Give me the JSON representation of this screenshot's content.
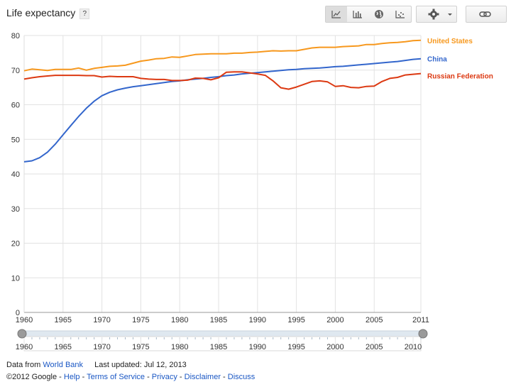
{
  "header": {
    "title": "Life expectancy",
    "help_label": "?"
  },
  "toolbar": {
    "buttons": [
      {
        "name": "line-chart-button",
        "icon": "line-chart-icon",
        "active": true
      },
      {
        "name": "bar-chart-button",
        "icon": "bar-chart-icon",
        "active": false
      },
      {
        "name": "map-button",
        "icon": "globe-icon",
        "active": false
      },
      {
        "name": "scatter-button",
        "icon": "scatter-icon",
        "active": false
      }
    ],
    "settings_icon": "gear-icon",
    "link_icon": "link-icon"
  },
  "chart_data": {
    "type": "line",
    "title": "Life expectancy",
    "xlim": [
      1960,
      2011
    ],
    "ylim": [
      0,
      80
    ],
    "x_ticks": [
      1960,
      1965,
      1970,
      1975,
      1980,
      1985,
      1990,
      1995,
      2000,
      2005,
      2011
    ],
    "y_ticks": [
      0,
      10,
      20,
      30,
      40,
      50,
      60,
      70,
      80
    ],
    "grid": true,
    "legend": "right",
    "x": [
      1960,
      1961,
      1962,
      1963,
      1964,
      1965,
      1966,
      1967,
      1968,
      1969,
      1970,
      1971,
      1972,
      1973,
      1974,
      1975,
      1976,
      1977,
      1978,
      1979,
      1980,
      1981,
      1982,
      1983,
      1984,
      1985,
      1986,
      1987,
      1988,
      1989,
      1990,
      1991,
      1992,
      1993,
      1994,
      1995,
      1996,
      1997,
      1998,
      1999,
      2000,
      2001,
      2002,
      2003,
      2004,
      2005,
      2006,
      2007,
      2008,
      2009,
      2010,
      2011
    ],
    "series": [
      {
        "name": "United States",
        "color": "#f7981d",
        "values": [
          69.8,
          70.3,
          70.1,
          69.9,
          70.2,
          70.2,
          70.2,
          70.6,
          70.0,
          70.5,
          70.8,
          71.1,
          71.2,
          71.4,
          72.0,
          72.6,
          72.9,
          73.3,
          73.4,
          73.8,
          73.7,
          74.1,
          74.5,
          74.6,
          74.7,
          74.7,
          74.7,
          74.9,
          74.9,
          75.1,
          75.2,
          75.4,
          75.6,
          75.5,
          75.6,
          75.6,
          76.0,
          76.4,
          76.6,
          76.6,
          76.6,
          76.8,
          76.9,
          77.0,
          77.4,
          77.4,
          77.7,
          77.9,
          78.0,
          78.2,
          78.5,
          78.6
        ]
      },
      {
        "name": "China",
        "color": "#3366cc",
        "values": [
          43.5,
          43.8,
          44.7,
          46.3,
          48.6,
          51.3,
          54.0,
          56.6,
          59.0,
          61.0,
          62.6,
          63.6,
          64.3,
          64.8,
          65.2,
          65.5,
          65.8,
          66.1,
          66.4,
          66.7,
          66.9,
          67.2,
          67.4,
          67.6,
          67.9,
          68.1,
          68.4,
          68.6,
          68.9,
          69.1,
          69.3,
          69.5,
          69.7,
          69.9,
          70.1,
          70.2,
          70.4,
          70.5,
          70.6,
          70.8,
          71.0,
          71.1,
          71.3,
          71.5,
          71.7,
          71.9,
          72.1,
          72.3,
          72.5,
          72.8,
          73.1,
          73.3
        ]
      },
      {
        "name": "Russian Federation",
        "color": "#dc3912",
        "values": [
          67.4,
          67.8,
          68.1,
          68.3,
          68.5,
          68.5,
          68.5,
          68.5,
          68.4,
          68.4,
          68.0,
          68.2,
          68.1,
          68.1,
          68.1,
          67.6,
          67.4,
          67.3,
          67.3,
          67.0,
          67.0,
          67.1,
          67.7,
          67.6,
          67.2,
          67.8,
          69.4,
          69.5,
          69.5,
          69.2,
          68.9,
          68.5,
          66.9,
          64.9,
          64.5,
          65.1,
          65.9,
          66.7,
          66.9,
          66.6,
          65.3,
          65.5,
          65.0,
          64.9,
          65.3,
          65.4,
          66.7,
          67.6,
          67.9,
          68.6,
          68.8,
          69.0
        ]
      }
    ]
  },
  "range": {
    "labels": [
      "1960",
      "1965",
      "1970",
      "1975",
      "1980",
      "1985",
      "1990",
      "1995",
      "2000",
      "2005",
      "2010"
    ]
  },
  "footer": {
    "line1_prefix": "Data from",
    "source_link": "World Bank",
    "last_updated": "Last updated: Jul 12, 2013",
    "copyright": "©2012 Google - ",
    "links": [
      "Help",
      "Terms of Service",
      "Privacy",
      "Disclaimer",
      "Discuss"
    ],
    "separator": " - "
  }
}
